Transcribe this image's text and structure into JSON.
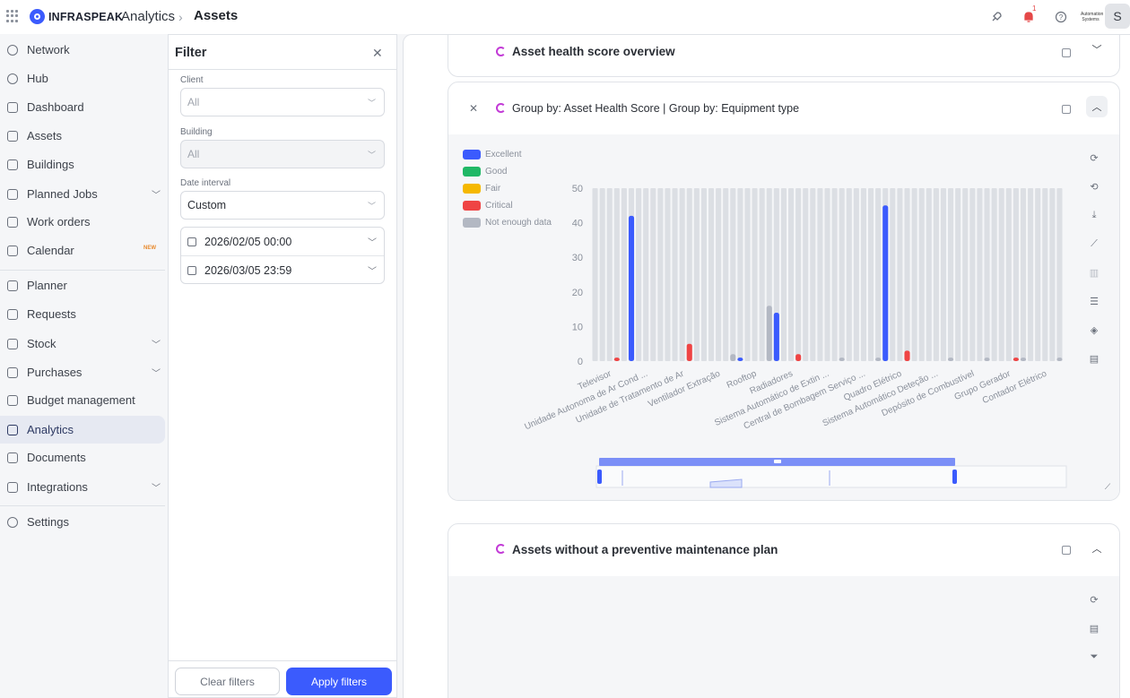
{
  "topbar": {
    "brand": "INFRASPEAK",
    "breadcrumb_parent": "Analytics",
    "breadcrumb_current": "Assets",
    "notification_count": "1",
    "org_logo_text": "Automation\nSystems",
    "avatar_initial": "S",
    "icons": [
      "apps-grid-icon",
      "rocket-icon",
      "bell-icon",
      "help-icon"
    ]
  },
  "sidebar": {
    "items": [
      {
        "label": "Network",
        "icon": "network-icon"
      },
      {
        "label": "Hub",
        "icon": "hub-icon"
      },
      {
        "label": "Dashboard",
        "icon": "dashboard-icon"
      },
      {
        "label": "Assets",
        "icon": "assets-icon"
      },
      {
        "label": "Buildings",
        "icon": "buildings-icon"
      },
      {
        "label": "Planned Jobs",
        "icon": "planned-jobs-icon",
        "expandable": true
      },
      {
        "label": "Work orders",
        "icon": "work-orders-icon"
      },
      {
        "label": "Calendar",
        "icon": "calendar-icon",
        "badge": "NEW"
      },
      {
        "label": "Planner",
        "icon": "planner-icon"
      },
      {
        "label": "Requests",
        "icon": "requests-icon"
      },
      {
        "label": "Stock",
        "icon": "stock-icon",
        "expandable": true
      },
      {
        "label": "Purchases",
        "icon": "purchases-icon",
        "expandable": true
      },
      {
        "label": "Budget management",
        "icon": "budget-icon"
      },
      {
        "label": "Analytics",
        "icon": "analytics-icon",
        "active": true
      },
      {
        "label": "Documents",
        "icon": "documents-icon"
      },
      {
        "label": "Integrations",
        "icon": "integrations-icon",
        "expandable": true
      },
      {
        "label": "Settings",
        "icon": "settings-icon"
      }
    ]
  },
  "filter": {
    "title": "Filter",
    "client_label": "Client",
    "client_value": "All",
    "building_label": "Building",
    "building_value": "All",
    "date_interval_label": "Date interval",
    "date_interval_value": "Custom",
    "date_from": "2026/02/05 00:00",
    "date_to": "2026/03/05 23:59",
    "clear_label": "Clear filters",
    "apply_label": "Apply filters"
  },
  "cards": {
    "overview_title": "Asset health score overview",
    "group_title": "Group by: Asset Health Score | Group by: Equipment type",
    "no_plan_title": "Assets without a preventive maintenance plan"
  },
  "colors": {
    "excellent": "#3b5bfd",
    "good": "#20b866",
    "fair": "#f5b800",
    "critical": "#ef4444",
    "not_enough": "#b3b8c3",
    "accent": "#3b5bfd"
  },
  "chart_data": {
    "type": "bar",
    "legend": [
      "Excellent",
      "Good",
      "Fair",
      "Critical",
      "Not enough data"
    ],
    "ylim": [
      0,
      50
    ],
    "yticks": [
      0,
      10,
      20,
      30,
      40,
      50
    ],
    "categories": [
      "Televisor",
      "Unidade Autonoma de Ar Cond ...",
      "Unidade de Tratamento de Ar",
      "Ventilador Extração",
      "Rooftop",
      "Radiadores",
      "Sistema Automático de Extin ...",
      "Central de Bombagem Serviço ...",
      "Quadro Elétrico",
      "Sistema Automático Deteção ...",
      "Depósito de Combustível",
      "Grupo Gerador",
      "Contador Elétrico"
    ],
    "series": [
      {
        "name": "Excellent",
        "values": [
          0,
          42,
          0,
          0,
          1,
          14,
          0,
          0,
          45,
          0,
          0,
          0,
          0
        ]
      },
      {
        "name": "Good",
        "values": [
          0,
          0,
          0,
          0,
          0,
          0,
          0,
          0,
          0,
          0,
          0,
          0,
          0
        ]
      },
      {
        "name": "Fair",
        "values": [
          0,
          0,
          0,
          0,
          0,
          0,
          0,
          0,
          0,
          0,
          0,
          0,
          0
        ]
      },
      {
        "name": "Critical",
        "values": [
          1,
          0,
          5,
          0,
          0,
          2,
          0,
          0,
          3,
          0,
          0,
          1,
          0
        ]
      },
      {
        "name": "Not enough data",
        "values": [
          0,
          0,
          0,
          2,
          16,
          0,
          1,
          1,
          0,
          1,
          1,
          1,
          1
        ]
      }
    ]
  }
}
